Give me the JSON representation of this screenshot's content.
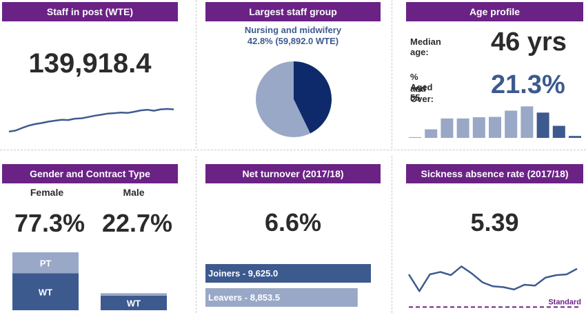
{
  "staff_in_post": {
    "header": "Staff in post (WTE)",
    "value": "139,918.4"
  },
  "largest_group": {
    "header": "Largest staff group",
    "group_name": "Nursing and midwifery",
    "group_detail": "42.8% (59,892.0 WTE)"
  },
  "age_profile": {
    "header": "Age profile",
    "median_label": "Median age:",
    "median_value": "46 yrs",
    "aged55_label_line1": "% Aged 55",
    "aged55_label_line2": "and Over:",
    "aged55_value": "21.3%"
  },
  "gender": {
    "header": "Gender and Contract Type",
    "female_label": "Female",
    "male_label": "Male",
    "female_value": "77.3%",
    "male_value": "22.7%",
    "pt_label": "PT",
    "wt_label": "WT"
  },
  "turnover": {
    "header": "Net turnover (2017/18)",
    "value": "6.6%"
  },
  "sickness": {
    "header": "Sickness absence rate (2017/18)",
    "value": "5.39",
    "standard_label": "Standard"
  },
  "colors": {
    "header_purple": "#6b2285",
    "dark_navy": "#0e2a6b",
    "mid_blue": "#3d5a8f",
    "light_blue": "#99a8c6",
    "standard_purple": "#6b2285"
  },
  "chart_data": [
    {
      "type": "line",
      "id": "staff_trend",
      "title": "",
      "values": [
        128.5,
        129.0,
        130.3,
        131.5,
        132.3,
        132.8,
        133.5,
        134.0,
        134.4,
        134.3,
        135.0,
        135.2,
        135.8,
        136.5,
        137.0,
        137.6,
        137.8,
        138.1,
        137.9,
        138.5,
        139.2,
        139.5,
        139.0,
        139.7,
        139.9,
        139.7
      ],
      "ylim": [
        126,
        142
      ]
    },
    {
      "type": "pie",
      "id": "largest_staff_group",
      "slices": [
        {
          "label": "Nursing and midwifery",
          "value": 42.8
        },
        {
          "label": "",
          "value": 57.2
        }
      ]
    },
    {
      "type": "bar",
      "id": "age_distribution",
      "values": [
        0.2,
        2.2,
        5.0,
        5.0,
        5.3,
        5.4,
        7.0,
        8.1,
        6.5,
        3.1,
        0.5
      ],
      "highlight_from_index": 8,
      "ylim": [
        0,
        8.5
      ]
    },
    {
      "type": "bar",
      "id": "gender_contract",
      "categories": [
        "Female",
        "Male"
      ],
      "series": [
        {
          "name": "WT",
          "values": [
            49.2,
            19.5
          ]
        },
        {
          "name": "PT",
          "values": [
            28.1,
            3.2
          ]
        }
      ],
      "ylim": [
        0,
        77.3
      ]
    },
    {
      "type": "bar",
      "id": "turnover_bars",
      "orientation": "horizontal",
      "categories": [
        "Joiners - 9,625.0",
        "Leavers - 8,853.5"
      ],
      "values": [
        9625.0,
        8853.5
      ],
      "xlim": [
        0,
        9625.0
      ]
    },
    {
      "type": "line",
      "id": "sickness_trend",
      "values": [
        5.05,
        4.0,
        5.05,
        5.2,
        5.0,
        5.55,
        5.1,
        4.55,
        4.3,
        4.25,
        4.1,
        4.4,
        4.35,
        4.85,
        5.0,
        5.05,
        5.4
      ],
      "standard": 3.0,
      "ylim": [
        2.8,
        6.0
      ]
    }
  ]
}
